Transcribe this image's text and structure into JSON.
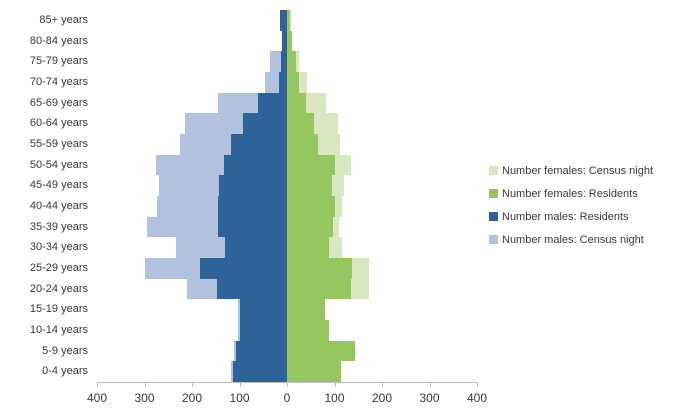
{
  "chart_data": {
    "type": "bar",
    "subtype": "population-pyramid",
    "title": "",
    "xlabel": "",
    "ylabel": "",
    "categories": [
      "85+ years",
      "80-84 years",
      "75-79 years",
      "70-74 years",
      "65-69 years",
      "60-64 years",
      "55-59 years",
      "50-54 years",
      "45-49 years",
      "40-44 years",
      "35-39 years",
      "30-34 years",
      "25-29 years",
      "20-24 years",
      "15-19 years",
      "10-14 years",
      "5-9 years",
      "0-4 years"
    ],
    "series": [
      {
        "name": "Number females: Census night",
        "side": "right",
        "layer": "back",
        "color": "#D9E7C2",
        "values": [
          9,
          11,
          26,
          43,
          82,
          107,
          112,
          135,
          120,
          116,
          110,
          115,
          172,
          172,
          78,
          85,
          130,
          105
        ]
      },
      {
        "name": "Number females: Residents",
        "side": "right",
        "layer": "front",
        "color": "#97C55F",
        "values": [
          7,
          10,
          19,
          25,
          41,
          56,
          65,
          101,
          95,
          102,
          97,
          88,
          137,
          135,
          81,
          88,
          144,
          114
        ]
      },
      {
        "name": "Number males: Residents",
        "side": "left",
        "layer": "front",
        "color": "#2E6399",
        "values": [
          14,
          10,
          12,
          16,
          62,
          93,
          117,
          133,
          143,
          145,
          146,
          130,
          183,
          147,
          98,
          100,
          107,
          114
        ]
      },
      {
        "name": "Number males: Census night",
        "side": "left",
        "layer": "back",
        "color": "#B2C2DE",
        "values": [
          12,
          8,
          35,
          47,
          145,
          214,
          225,
          276,
          269,
          274,
          295,
          233,
          300,
          210,
          103,
          104,
          111,
          118
        ]
      }
    ],
    "x_axis": {
      "tick_labels": [
        "400",
        "300",
        "200",
        "100",
        "0",
        "100",
        "200",
        "300",
        "400"
      ],
      "units_per_side": 400,
      "grid": false
    },
    "legend": {
      "position": "right",
      "items": [
        "Number females: Census night",
        "Number females: Residents",
        "Number males: Residents",
        "Number males: Census night"
      ]
    },
    "colors": {
      "axis": "#BFBFBF",
      "text": "#383838",
      "background": "#FFFFFF"
    }
  }
}
